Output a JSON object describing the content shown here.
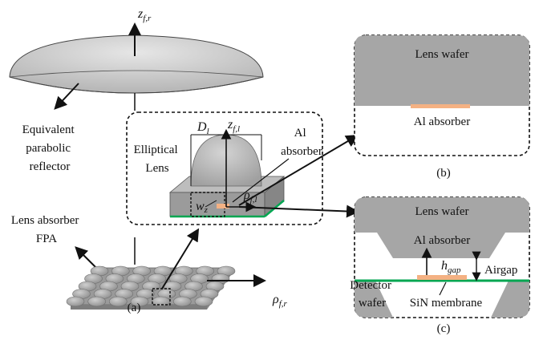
{
  "panel_a": {
    "reflector_axis": {
      "base": "z",
      "sub": "f,r"
    },
    "reflector_label": [
      "Equivalent",
      "parabolic",
      "reflector"
    ],
    "fpa_label": [
      "Lens absorber",
      "FPA"
    ],
    "radial_axis": {
      "base": "ρ",
      "sub": "f,r"
    },
    "caption": "(a)",
    "inset": {
      "lens_label": [
        "Elliptical",
        "Lens"
      ],
      "absorber_label": [
        "Al",
        "absorber"
      ],
      "diameter": {
        "base": "D",
        "sub": "l"
      },
      "lens_axis": {
        "base": "z",
        "sub": "f,l"
      },
      "lens_radial": {
        "base": "ρ",
        "sub": "f,l"
      },
      "width": {
        "base": "w",
        "sub": "z"
      }
    }
  },
  "panel_b": {
    "wafer_label": "Lens wafer",
    "absorber_label": "Al absorber",
    "caption": "(b)"
  },
  "panel_c": {
    "wafer_label": "Lens wafer",
    "absorber_label": "Al absorber",
    "gap": {
      "base": "h",
      "sub": "gap"
    },
    "airgap_label": "Airgap",
    "detector_label": [
      "Detector",
      "wafer"
    ],
    "membrane_label": "SiN membrane",
    "caption": "(c)"
  },
  "colors": {
    "wafer_gray": "#a6a6a6",
    "absorber": "#f4b183",
    "membrane": "#00a651",
    "reflector": "#c8c8c8"
  }
}
